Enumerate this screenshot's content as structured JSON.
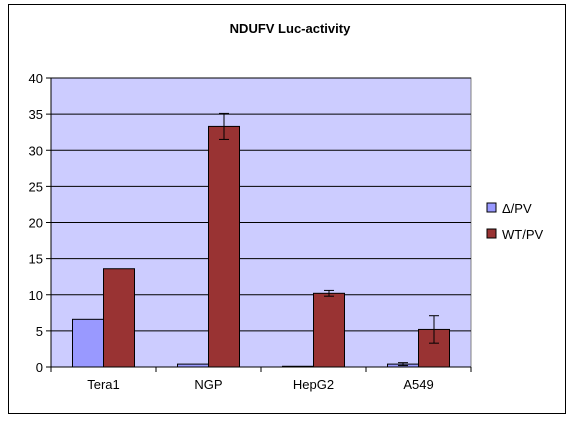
{
  "chart_data": {
    "type": "bar",
    "title": "NDUFV Luc-activity",
    "xlabel": "",
    "ylabel": "",
    "categories": [
      "Tera1",
      "NGP",
      "HepG2",
      "A549"
    ],
    "ylim": [
      0,
      40
    ],
    "yticks": [
      0,
      5,
      10,
      15,
      20,
      25,
      30,
      35,
      40
    ],
    "grid": true,
    "legend_position": "right",
    "series": [
      {
        "name": "Δ/PV",
        "color": "#9999ff",
        "values": [
          6.6,
          0.4,
          0.1,
          0.4
        ],
        "errors": [
          0,
          0,
          0,
          0.2
        ]
      },
      {
        "name": "WT/PV",
        "color": "#993333",
        "values": [
          13.6,
          33.3,
          10.2,
          5.2
        ],
        "errors": [
          0,
          1.8,
          0.4,
          1.9
        ]
      }
    ],
    "plot_background": "#ccccff"
  }
}
